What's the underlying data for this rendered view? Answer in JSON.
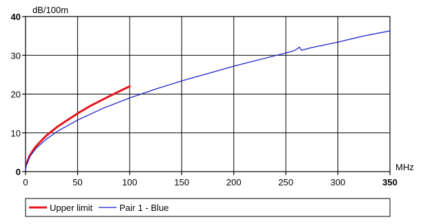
{
  "chart_data": {
    "type": "line",
    "xlabel": "MHz",
    "ylabel": "dB/100m",
    "xlim": [
      0,
      350
    ],
    "ylim": [
      0,
      40
    ],
    "x_ticks": [
      0,
      50,
      100,
      150,
      200,
      250,
      300,
      350
    ],
    "y_ticks": [
      0,
      10,
      20,
      30,
      40
    ],
    "grid": true,
    "legend_position": "bottom",
    "series": [
      {
        "name": "Upper limit",
        "color": "#e8141c",
        "x": [
          1,
          4,
          8,
          10,
          16,
          20,
          31.25,
          50,
          62.5,
          80,
          100
        ],
        "y": [
          2.0,
          4.1,
          5.8,
          6.5,
          8.2,
          9.3,
          11.7,
          15.0,
          17.0,
          19.4,
          22.0
        ]
      },
      {
        "name": "Pair 1 - Blue",
        "color": "#1a22cc",
        "x": [
          0,
          1,
          4,
          10,
          20,
          30,
          50,
          75,
          100,
          125,
          150,
          175,
          200,
          225,
          250,
          258,
          261,
          263,
          265,
          275,
          300,
          325,
          350
        ],
        "y": [
          0.5,
          1.9,
          3.8,
          6.0,
          8.4,
          10.3,
          13.3,
          16.4,
          19.0,
          21.3,
          23.4,
          25.3,
          27.2,
          28.9,
          30.6,
          31.2,
          31.7,
          32.1,
          31.3,
          32.0,
          33.4,
          35.0,
          36.3
        ]
      }
    ]
  }
}
